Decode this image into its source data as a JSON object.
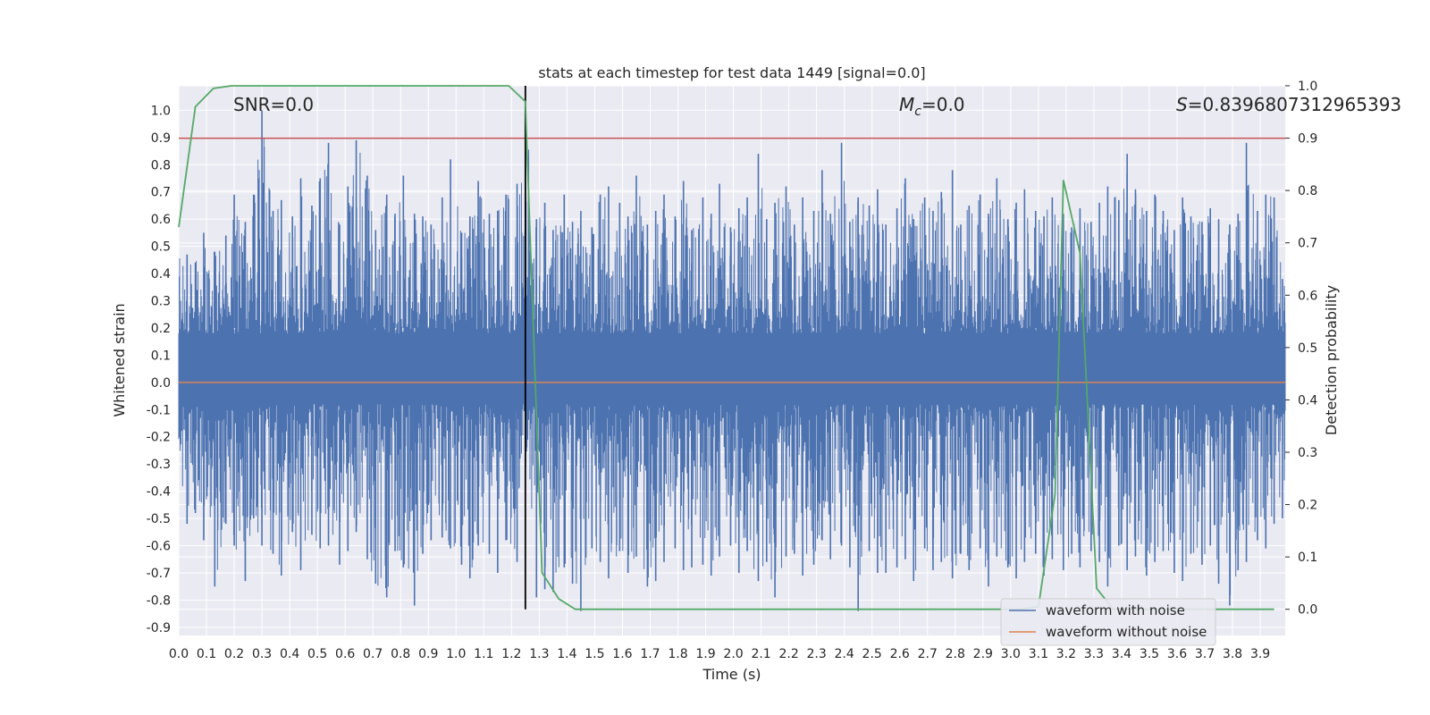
{
  "chart_data": {
    "type": "line",
    "title": "stats at each timestep for test data 1449 [signal=0.0]",
    "xlabel": "Time (s)",
    "ylabel": "Whitened strain",
    "y2label": "Detection probability",
    "xlim": [
      0.0,
      3.99
    ],
    "ylim": [
      -0.93,
      1.09
    ],
    "y2lim": [
      -0.05,
      1.0
    ],
    "x_ticks": [
      0.0,
      0.1,
      0.2,
      0.3,
      0.4,
      0.5,
      0.6,
      0.7,
      0.8,
      0.9,
      1.0,
      1.1,
      1.2,
      1.3,
      1.4,
      1.5,
      1.6,
      1.7,
      1.8,
      1.9,
      2.0,
      2.1,
      2.2,
      2.3,
      2.4,
      2.5,
      2.6,
      2.7,
      2.8,
      2.9,
      3.0,
      3.1,
      3.2,
      3.3,
      3.4,
      3.5,
      3.6,
      3.7,
      3.8,
      3.9
    ],
    "y_ticks": [
      1.0,
      0.9,
      0.8,
      0.7,
      0.6,
      0.5,
      0.4,
      0.3,
      0.2,
      0.1,
      0.0,
      -0.1,
      -0.2,
      -0.3,
      -0.4,
      -0.5,
      -0.6,
      -0.7,
      -0.8,
      -0.9
    ],
    "y2_ticks": [
      1.0,
      0.9,
      0.8,
      0.7,
      0.6,
      0.5,
      0.4,
      0.3,
      0.2,
      0.1,
      0.0
    ],
    "annotations": {
      "snr": "SNR=0.0",
      "mc_symbol": "M",
      "mc_sub": "c",
      "mc_value": "=0.0",
      "s_symbol": "S",
      "s_value": "=0.8396807312965393"
    },
    "series": [
      {
        "name": "waveform with noise",
        "color": "#4c72b0",
        "note": "dense whitened strain noise, range approx -0.84 to 1.0",
        "peaks_max": [
          [
            0.03,
            0.47
          ],
          [
            0.06,
            0.44
          ],
          [
            0.09,
            0.55
          ],
          [
            0.13,
            0.48
          ],
          [
            0.17,
            0.54
          ],
          [
            0.2,
            0.69
          ],
          [
            0.24,
            0.59
          ],
          [
            0.27,
            0.69
          ],
          [
            0.3,
            1.0
          ],
          [
            0.34,
            0.63
          ],
          [
            0.37,
            0.67
          ],
          [
            0.41,
            0.61
          ],
          [
            0.44,
            0.75
          ],
          [
            0.48,
            0.65
          ],
          [
            0.51,
            0.75
          ],
          [
            0.54,
            0.88
          ],
          [
            0.58,
            0.58
          ],
          [
            0.61,
            0.72
          ],
          [
            0.64,
            0.89
          ],
          [
            0.68,
            0.76
          ],
          [
            0.71,
            0.56
          ],
          [
            0.75,
            0.69
          ],
          [
            0.78,
            0.62
          ],
          [
            0.81,
            0.76
          ],
          [
            0.85,
            0.62
          ],
          [
            0.88,
            0.61
          ],
          [
            0.91,
            0.58
          ],
          [
            0.95,
            0.68
          ],
          [
            0.98,
            0.82
          ],
          [
            1.02,
            0.55
          ],
          [
            1.05,
            0.61
          ],
          [
            1.08,
            0.74
          ],
          [
            1.12,
            0.62
          ],
          [
            1.15,
            0.63
          ],
          [
            1.18,
            0.69
          ],
          [
            1.22,
            0.73
          ],
          [
            1.25,
            1.0
          ],
          [
            1.29,
            0.6
          ],
          [
            1.32,
            0.66
          ],
          [
            1.35,
            0.56
          ],
          [
            1.39,
            0.69
          ],
          [
            1.42,
            0.59
          ],
          [
            1.45,
            0.63
          ],
          [
            1.49,
            0.57
          ],
          [
            1.52,
            0.69
          ],
          [
            1.55,
            0.72
          ],
          [
            1.59,
            0.66
          ],
          [
            1.62,
            0.61
          ],
          [
            1.65,
            0.76
          ],
          [
            1.69,
            0.58
          ],
          [
            1.72,
            0.63
          ],
          [
            1.75,
            0.69
          ],
          [
            1.79,
            0.61
          ],
          [
            1.82,
            0.74
          ],
          [
            1.85,
            0.56
          ],
          [
            1.89,
            0.68
          ],
          [
            1.92,
            0.62
          ],
          [
            1.95,
            0.73
          ],
          [
            1.99,
            0.57
          ],
          [
            2.02,
            0.64
          ],
          [
            2.05,
            0.68
          ],
          [
            2.09,
            0.84
          ],
          [
            2.12,
            0.6
          ],
          [
            2.15,
            0.66
          ],
          [
            2.19,
            0.72
          ],
          [
            2.22,
            0.58
          ],
          [
            2.25,
            0.68
          ],
          [
            2.29,
            0.63
          ],
          [
            2.32,
            0.78
          ],
          [
            2.35,
            0.62
          ],
          [
            2.39,
            0.88
          ],
          [
            2.42,
            0.59
          ],
          [
            2.45,
            0.68
          ],
          [
            2.49,
            0.65
          ],
          [
            2.52,
            0.71
          ],
          [
            2.55,
            0.58
          ],
          [
            2.59,
            0.64
          ],
          [
            2.62,
            0.75
          ],
          [
            2.65,
            0.6
          ],
          [
            2.69,
            0.68
          ],
          [
            2.72,
            0.63
          ],
          [
            2.75,
            0.7
          ],
          [
            2.79,
            0.78
          ],
          [
            2.82,
            0.58
          ],
          [
            2.85,
            0.65
          ],
          [
            2.89,
            0.69
          ],
          [
            2.92,
            0.62
          ],
          [
            2.95,
            0.75
          ],
          [
            2.99,
            0.6
          ],
          [
            3.02,
            0.66
          ],
          [
            3.05,
            0.71
          ],
          [
            3.09,
            0.63
          ],
          [
            3.12,
            0.61
          ],
          [
            3.15,
            0.68
          ],
          [
            3.19,
            0.62
          ],
          [
            3.22,
            0.57
          ],
          [
            3.25,
            0.64
          ],
          [
            3.29,
            0.59
          ],
          [
            3.32,
            0.66
          ],
          [
            3.35,
            0.72
          ],
          [
            3.39,
            0.67
          ],
          [
            3.42,
            0.84
          ],
          [
            3.45,
            0.71
          ],
          [
            3.49,
            0.63
          ],
          [
            3.52,
            0.69
          ],
          [
            3.55,
            0.63
          ],
          [
            3.59,
            0.56
          ],
          [
            3.62,
            0.68
          ],
          [
            3.65,
            0.61
          ],
          [
            3.69,
            0.59
          ],
          [
            3.72,
            0.64
          ],
          [
            3.75,
            0.6
          ],
          [
            3.79,
            0.58
          ],
          [
            3.82,
            0.62
          ],
          [
            3.85,
            0.88
          ],
          [
            3.89,
            0.63
          ],
          [
            3.92,
            0.69
          ],
          [
            3.95,
            0.68
          ],
          [
            3.98,
            0.38
          ]
        ],
        "peaks_min": [
          [
            0.03,
            -0.52
          ],
          [
            0.06,
            -0.48
          ],
          [
            0.09,
            -0.58
          ],
          [
            0.13,
            -0.75
          ],
          [
            0.17,
            -0.52
          ],
          [
            0.2,
            -0.6
          ],
          [
            0.24,
            -0.73
          ],
          [
            0.27,
            -0.5
          ],
          [
            0.3,
            -0.6
          ],
          [
            0.34,
            -0.63
          ],
          [
            0.37,
            -0.71
          ],
          [
            0.41,
            -0.55
          ],
          [
            0.44,
            -0.69
          ],
          [
            0.48,
            -0.56
          ],
          [
            0.51,
            -0.61
          ],
          [
            0.54,
            -0.6
          ],
          [
            0.58,
            -0.67
          ],
          [
            0.61,
            -0.62
          ],
          [
            0.64,
            -0.55
          ],
          [
            0.68,
            -0.65
          ],
          [
            0.71,
            -0.74
          ],
          [
            0.75,
            -0.79
          ],
          [
            0.78,
            -0.62
          ],
          [
            0.81,
            -0.68
          ],
          [
            0.85,
            -0.82
          ],
          [
            0.88,
            -0.63
          ],
          [
            0.91,
            -0.58
          ],
          [
            0.95,
            -0.57
          ],
          [
            0.98,
            -0.61
          ],
          [
            1.02,
            -0.67
          ],
          [
            1.05,
            -0.72
          ],
          [
            1.08,
            -0.6
          ],
          [
            1.12,
            -0.63
          ],
          [
            1.15,
            -0.7
          ],
          [
            1.18,
            -0.58
          ],
          [
            1.22,
            -0.66
          ],
          [
            1.25,
            -0.31
          ],
          [
            1.29,
            -0.79
          ],
          [
            1.32,
            -0.76
          ],
          [
            1.35,
            -0.77
          ],
          [
            1.39,
            -0.68
          ],
          [
            1.42,
            -0.74
          ],
          [
            1.45,
            -0.84
          ],
          [
            1.49,
            -0.61
          ],
          [
            1.52,
            -0.66
          ],
          [
            1.55,
            -0.72
          ],
          [
            1.59,
            -0.62
          ],
          [
            1.62,
            -0.7
          ],
          [
            1.65,
            -0.64
          ],
          [
            1.69,
            -0.75
          ],
          [
            1.72,
            -0.73
          ],
          [
            1.75,
            -0.66
          ],
          [
            1.79,
            -0.61
          ],
          [
            1.82,
            -0.69
          ],
          [
            1.85,
            -0.68
          ],
          [
            1.89,
            -0.67
          ],
          [
            1.92,
            -0.71
          ],
          [
            1.95,
            -0.64
          ],
          [
            1.99,
            -0.6
          ],
          [
            2.02,
            -0.7
          ],
          [
            2.05,
            -0.62
          ],
          [
            2.09,
            -0.73
          ],
          [
            2.12,
            -0.66
          ],
          [
            2.15,
            -0.79
          ],
          [
            2.19,
            -0.64
          ],
          [
            2.22,
            -0.63
          ],
          [
            2.25,
            -0.71
          ],
          [
            2.29,
            -0.67
          ],
          [
            2.32,
            -0.58
          ],
          [
            2.35,
            -0.65
          ],
          [
            2.39,
            -0.6
          ],
          [
            2.42,
            -0.68
          ],
          [
            2.45,
            -0.84
          ],
          [
            2.49,
            -0.62
          ],
          [
            2.52,
            -0.7
          ],
          [
            2.55,
            -0.7
          ],
          [
            2.59,
            -0.68
          ],
          [
            2.62,
            -0.65
          ],
          [
            2.65,
            -0.73
          ],
          [
            2.69,
            -0.61
          ],
          [
            2.72,
            -0.69
          ],
          [
            2.75,
            -0.66
          ],
          [
            2.79,
            -0.72
          ],
          [
            2.82,
            -0.63
          ],
          [
            2.85,
            -0.69
          ],
          [
            2.89,
            -0.61
          ],
          [
            2.92,
            -0.75
          ],
          [
            2.95,
            -0.64
          ],
          [
            2.99,
            -0.68
          ],
          [
            3.02,
            -0.72
          ],
          [
            3.05,
            -0.66
          ],
          [
            3.09,
            -0.63
          ],
          [
            3.12,
            -0.71
          ],
          [
            3.15,
            -0.65
          ],
          [
            3.19,
            -0.69
          ],
          [
            3.22,
            -0.63
          ],
          [
            3.25,
            -0.68
          ],
          [
            3.29,
            -0.62
          ],
          [
            3.32,
            -0.66
          ],
          [
            3.35,
            -0.75
          ],
          [
            3.39,
            -0.6
          ],
          [
            3.42,
            -0.69
          ],
          [
            3.45,
            -0.64
          ],
          [
            3.49,
            -0.71
          ],
          [
            3.52,
            -0.66
          ],
          [
            3.55,
            -0.62
          ],
          [
            3.59,
            -0.7
          ],
          [
            3.62,
            -0.73
          ],
          [
            3.65,
            -0.63
          ],
          [
            3.69,
            -0.67
          ],
          [
            3.72,
            -0.6
          ],
          [
            3.75,
            -0.74
          ],
          [
            3.79,
            -0.82
          ],
          [
            3.82,
            -0.69
          ],
          [
            3.85,
            -0.66
          ],
          [
            3.89,
            -0.58
          ],
          [
            3.92,
            -0.61
          ],
          [
            3.95,
            -0.52
          ],
          [
            3.98,
            -0.5
          ]
        ]
      },
      {
        "name": "waveform without noise",
        "color": "#dd8452",
        "x": [
          0.0,
          3.99
        ],
        "values": [
          0.0,
          0.0
        ]
      },
      {
        "name": "detection probability",
        "axis": "right",
        "color": "#55a868",
        "x": [
          0.0,
          0.06,
          0.125,
          0.19,
          1.19,
          1.25,
          1.31,
          1.37,
          1.43,
          3.03,
          3.1,
          3.16,
          3.19,
          3.25,
          3.31,
          3.37,
          3.43,
          3.49,
          3.95
        ],
        "values": [
          0.73,
          0.96,
          0.995,
          1.0,
          1.0,
          0.97,
          0.07,
          0.02,
          0.0,
          0.0,
          0.005,
          0.22,
          0.82,
          0.68,
          0.04,
          0.0,
          0.0,
          0.0,
          0.0
        ]
      }
    ],
    "threshold": {
      "value": 0.9,
      "axis": "right",
      "color": "#c44e52"
    },
    "vertical_marker": {
      "x": 1.25,
      "color": "#000000"
    }
  }
}
